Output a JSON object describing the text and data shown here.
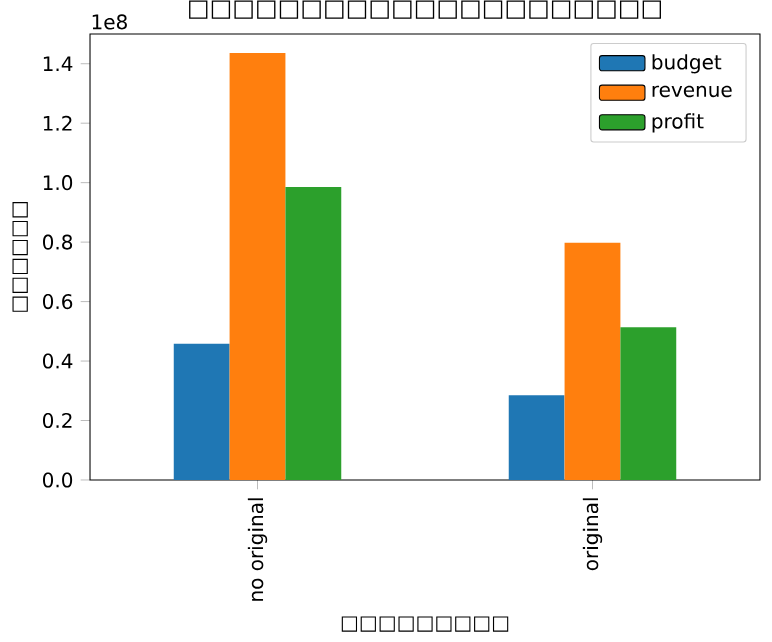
{
  "chart_data": {
    "type": "bar",
    "title": "□□□□□□□□□□□□□□□□□□□□□",
    "xlabel": "□□□□□□□□□",
    "ylabel": "□□□□□□",
    "categories": [
      "no original",
      "original"
    ],
    "series": [
      {
        "name": "budget",
        "color": "#1f77b4",
        "values": [
          0.458,
          0.285
        ]
      },
      {
        "name": "revenue",
        "color": "#ff7f0e",
        "values": [
          1.436,
          0.798
        ]
      },
      {
        "name": "profit",
        "color": "#2ca02c",
        "values": [
          0.985,
          0.514
        ]
      }
    ],
    "ylim": [
      0,
      1.5
    ],
    "yticks": [
      {
        "value": 0,
        "label": "0.0"
      },
      {
        "value": 0.2,
        "label": "0.2"
      },
      {
        "value": 0.4,
        "label": "0.4"
      },
      {
        "value": 0.6,
        "label": "0.6"
      },
      {
        "value": 0.8,
        "label": "0.8"
      },
      {
        "value": 1.0,
        "label": "1.0"
      },
      {
        "value": 1.2,
        "label": "1.2"
      },
      {
        "value": 1.4,
        "label": "1.4"
      }
    ],
    "annotations": [
      "1e8"
    ],
    "legend": "top right",
    "grid": false
  }
}
